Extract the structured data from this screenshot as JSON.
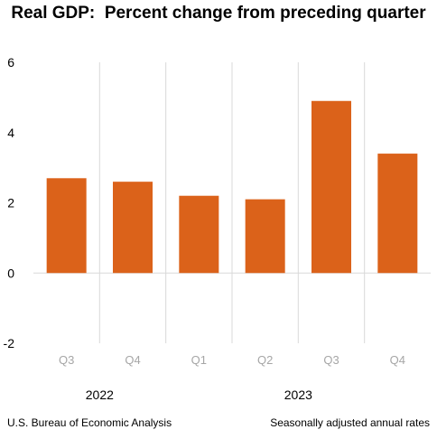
{
  "chart_data": {
    "type": "bar",
    "title": "Real GDP:  Percent change from preceding quarter",
    "categories": [
      "Q3",
      "Q4",
      "Q1",
      "Q2",
      "Q3",
      "Q4"
    ],
    "year_groups": [
      {
        "label": "2022",
        "quarters": [
          "Q3",
          "Q4"
        ]
      },
      {
        "label": "2023",
        "quarters": [
          "Q1",
          "Q2",
          "Q3",
          "Q4"
        ]
      }
    ],
    "values": [
      2.7,
      2.6,
      2.2,
      2.1,
      4.9,
      3.4
    ],
    "ylim": [
      -2,
      6
    ],
    "yticks": [
      "-2",
      "0",
      "2",
      "4",
      "6"
    ],
    "xlabel": "",
    "ylabel": "",
    "grid": false,
    "colors": {
      "bar": "#DB621A",
      "separator": "#D9D9D9",
      "zero_line": "#D9D9D9",
      "quarter_label": "#A6A6A6"
    }
  },
  "footer": {
    "source": "U.S. Bureau of Economic Analysis",
    "note": "Seasonally adjusted annual rates"
  }
}
